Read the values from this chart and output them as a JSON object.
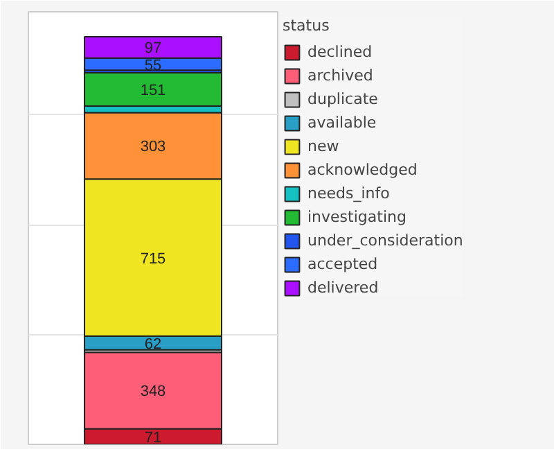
{
  "chart_data": {
    "type": "bar",
    "stacked": true,
    "categories": [
      null
    ],
    "legend_title": "status",
    "legend": "right",
    "grid": "y",
    "tick_labels": false,
    "ylim": [
      0,
      1970
    ],
    "yticks": [
      {
        "value": 0,
        "label": null
      },
      {
        "value": 500,
        "label": null
      },
      {
        "value": 1000,
        "label": null
      },
      {
        "value": 1500,
        "label": null
      }
    ],
    "series": [
      {
        "name": "declined",
        "color": "#cc1a2e",
        "values": [
          71
        ],
        "value_labels": [
          "71"
        ]
      },
      {
        "name": "archived",
        "color": "#ff5e78",
        "values": [
          348
        ],
        "value_labels": [
          "348"
        ]
      },
      {
        "name": "duplicate",
        "color": "#c0c0c0",
        "values": [
          12
        ],
        "value_labels": [
          null
        ]
      },
      {
        "name": "available",
        "color": "#2a9fc5",
        "values": [
          62
        ],
        "value_labels": [
          "62"
        ]
      },
      {
        "name": "new",
        "color": "#f0e521",
        "values": [
          715
        ],
        "value_labels": [
          "715"
        ]
      },
      {
        "name": "acknowledged",
        "color": "#ff9138",
        "values": [
          303
        ],
        "value_labels": [
          "303"
        ]
      },
      {
        "name": "needs_info",
        "color": "#14c0c0",
        "values": [
          30
        ],
        "value_labels": [
          null
        ]
      },
      {
        "name": "investigating",
        "color": "#22bb33",
        "values": [
          151
        ],
        "value_labels": [
          "151"
        ]
      },
      {
        "name": "under_consideration",
        "color": "#2255ee",
        "values": [
          12
        ],
        "value_labels": [
          null
        ]
      },
      {
        "name": "accepted",
        "color": "#2b6bff",
        "values": [
          55
        ],
        "value_labels": [
          "55"
        ]
      },
      {
        "name": "delivered",
        "color": "#aa10ff",
        "values": [
          97
        ],
        "value_labels": [
          "97"
        ]
      }
    ]
  }
}
